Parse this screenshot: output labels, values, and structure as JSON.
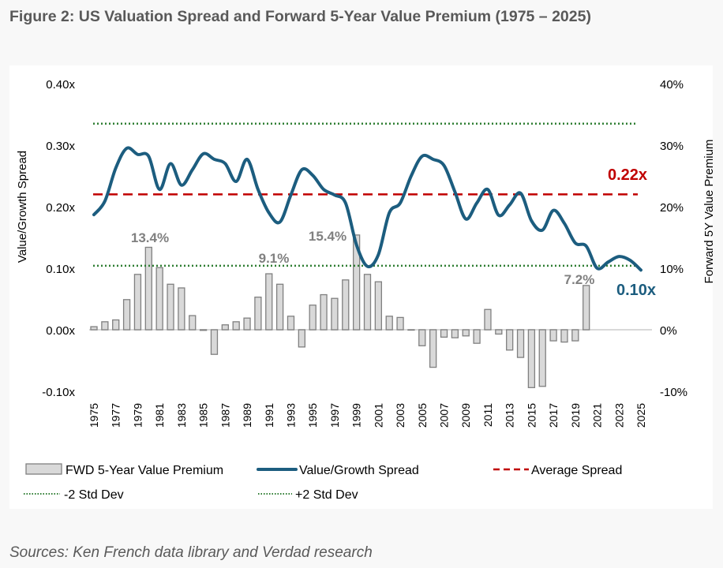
{
  "title": "Figure 2: US Valuation Spread and Forward 5-Year Value Premium (1975 – 2025)",
  "source": "Sources:  Ken French data library and Verdad research",
  "colors": {
    "bar_fill": "#d9d9d9",
    "bar_stroke": "#808080",
    "spread_line": "#1c5d7f",
    "average": "#c00000",
    "std_dev": "#2e7d32",
    "data_label": "#808080"
  },
  "chart_data": {
    "type": "bar+line",
    "years": [
      1975,
      1976,
      1977,
      1978,
      1979,
      1980,
      1981,
      1982,
      1983,
      1984,
      1985,
      1986,
      1987,
      1988,
      1989,
      1990,
      1991,
      1992,
      1993,
      1994,
      1995,
      1996,
      1997,
      1998,
      1999,
      2000,
      2001,
      2002,
      2003,
      2004,
      2005,
      2006,
      2007,
      2008,
      2009,
      2010,
      2011,
      2012,
      2013,
      2014,
      2015,
      2016,
      2017,
      2018,
      2019,
      2020,
      2021,
      2022,
      2023,
      2024,
      2025
    ],
    "x_tick_labels": [
      "1975",
      "1977",
      "1979",
      "1981",
      "1983",
      "1985",
      "1987",
      "1989",
      "1991",
      "1993",
      "1995",
      "1997",
      "1999",
      "2001",
      "2003",
      "2005",
      "2007",
      "2009",
      "2011",
      "2013",
      "2015",
      "2017",
      "2019",
      "2021",
      "2023",
      "2025"
    ],
    "left_axis": {
      "label": "Value/Growth Spread",
      "range": [
        -0.1,
        0.4
      ],
      "ticks": [
        "-0.10x",
        "0.00x",
        "0.10x",
        "0.20x",
        "0.30x",
        "0.40x"
      ]
    },
    "right_axis": {
      "label": "Forward 5Y Value Premium",
      "range": [
        -10,
        40
      ],
      "ticks": [
        "-10%",
        "0%",
        "10%",
        "20%",
        "30%",
        "40%"
      ]
    },
    "series": [
      {
        "name": "FWD 5-Year Value Premium",
        "type": "bar",
        "axis": "right",
        "values": [
          0.5,
          1.3,
          1.6,
          4.9,
          9.0,
          13.4,
          10.1,
          7.4,
          6.8,
          2.3,
          -0.1,
          -4.0,
          0.8,
          1.3,
          1.9,
          5.3,
          9.1,
          7.4,
          2.2,
          -2.8,
          4.0,
          5.7,
          5.1,
          8.1,
          15.4,
          9.0,
          7.8,
          2.2,
          2.0,
          0.0,
          -2.6,
          -6.1,
          -1.2,
          -1.3,
          -1.0,
          -2.2,
          3.3,
          -0.7,
          -3.3,
          -4.5,
          -9.4,
          -9.2,
          -1.8,
          -2.0,
          -1.8,
          7.2,
          null,
          null,
          null,
          null,
          null
        ]
      },
      {
        "name": "Value/Growth Spread",
        "type": "line",
        "axis": "left",
        "values": [
          0.187,
          0.209,
          0.263,
          0.295,
          0.285,
          0.282,
          0.228,
          0.27,
          0.235,
          0.26,
          0.286,
          0.277,
          0.27,
          0.241,
          0.277,
          0.228,
          0.19,
          0.175,
          0.219,
          0.26,
          0.251,
          0.228,
          0.219,
          0.206,
          0.138,
          0.103,
          0.122,
          0.19,
          0.206,
          0.25,
          0.282,
          0.277,
          0.267,
          0.224,
          0.18,
          0.206,
          0.228,
          0.186,
          0.203,
          0.222,
          0.177,
          0.162,
          0.194,
          0.173,
          0.141,
          0.136,
          0.1,
          0.11,
          0.119,
          0.113,
          0.097
        ]
      },
      {
        "name": "Average Spread",
        "type": "hline",
        "axis": "left",
        "value": 0.22
      },
      {
        "name": "-2 Std Dev",
        "type": "hline",
        "axis": "left",
        "value": 0.104
      },
      {
        "name": "+2 Std Dev",
        "type": "hline",
        "axis": "left",
        "value": 0.335
      }
    ],
    "annotations": [
      {
        "text": "13.4%",
        "year": 1980
      },
      {
        "text": "9.1%",
        "year": 1991
      },
      {
        "text": "15.4%",
        "year": 1999
      },
      {
        "text": "7.2%",
        "year": 2020
      },
      {
        "text": "0.22x",
        "kind": "average"
      },
      {
        "text": "0.10x",
        "kind": "latest"
      }
    ],
    "grid": false,
    "legend_placement": "bottom"
  }
}
